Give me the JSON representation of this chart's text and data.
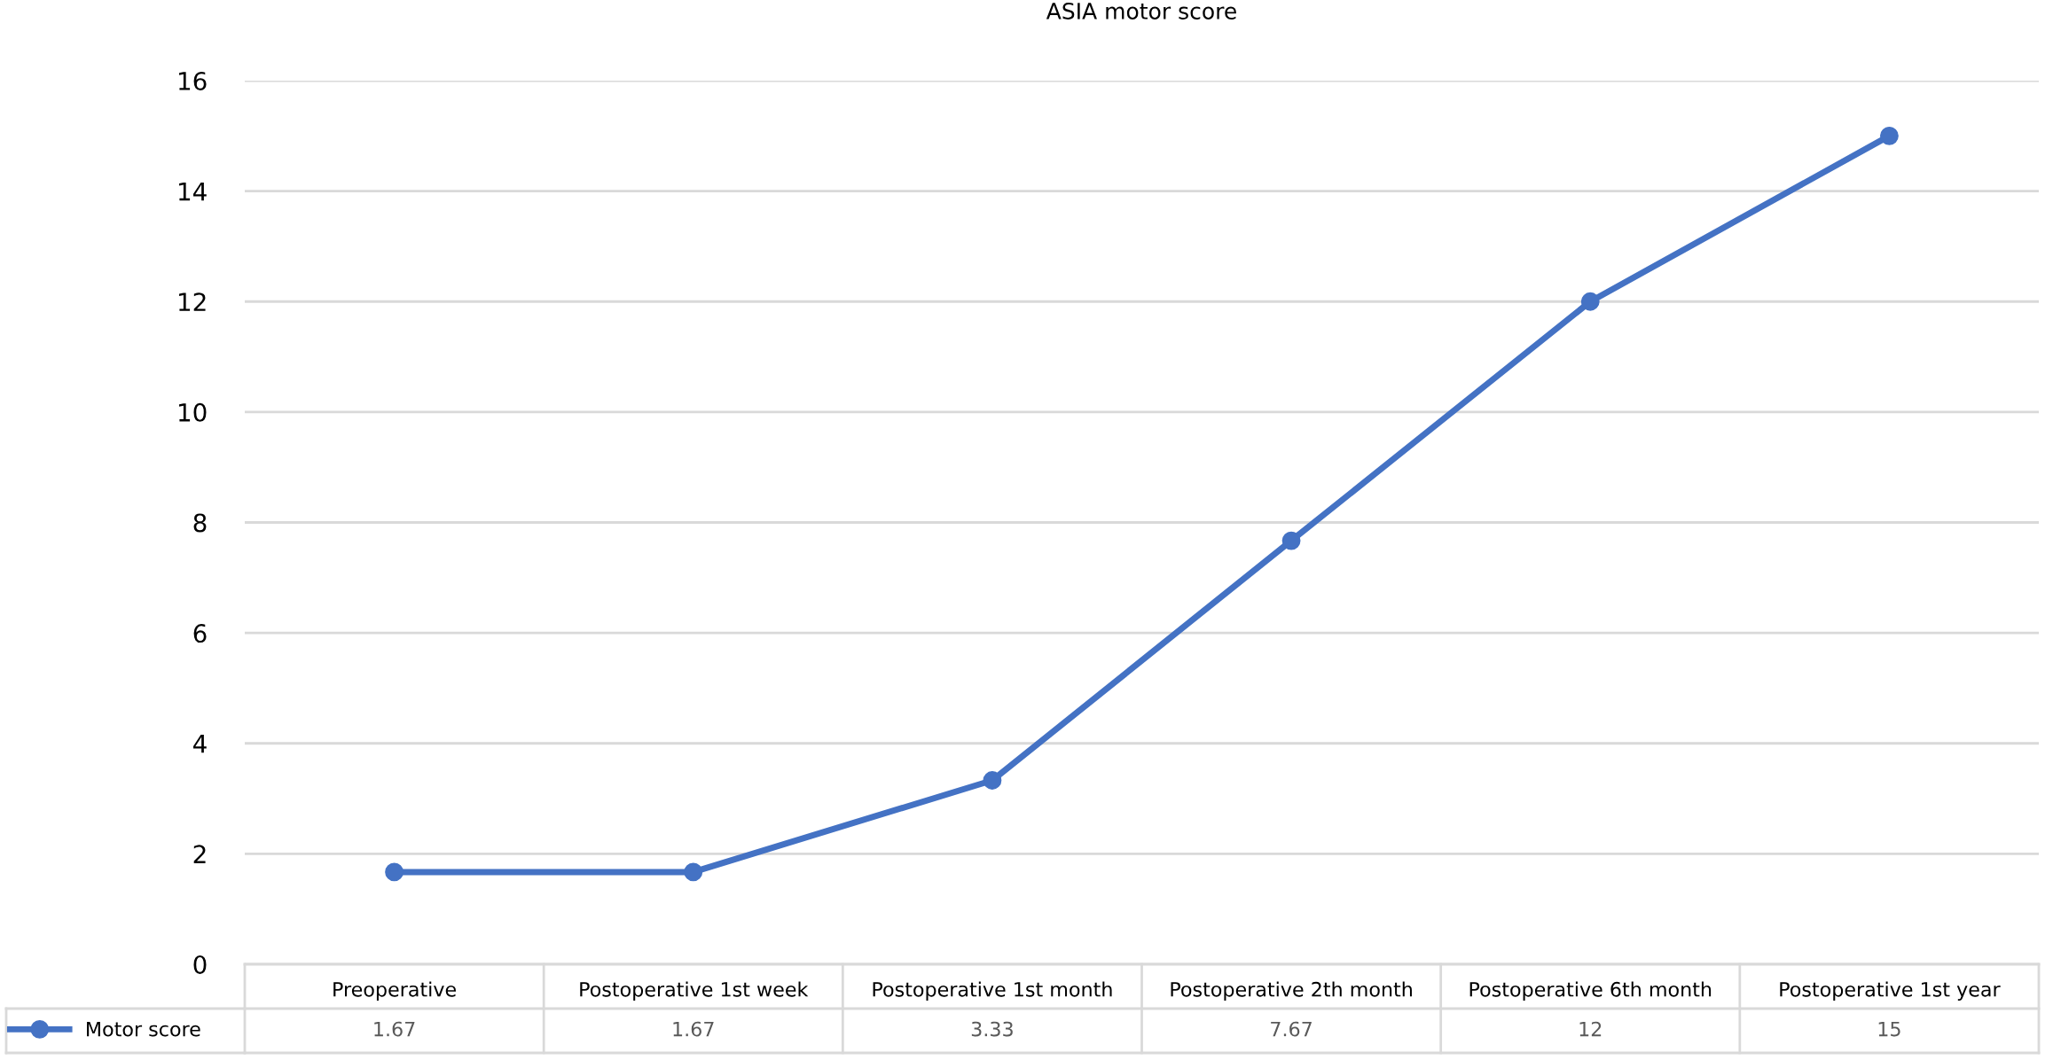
{
  "chart_data": {
    "type": "line",
    "title": "ASIA motor score",
    "categories": [
      "Preoperative",
      "Postoperative 1st week",
      "Postoperative 1st month",
      "Postoperative 2th month",
      "Postoperative 6th month",
      "Postoperative 1st year"
    ],
    "series": [
      {
        "name": "Motor score",
        "color": "#4472c4",
        "values": [
          1.67,
          1.67,
          3.33,
          7.67,
          12,
          15
        ]
      }
    ],
    "ylim": [
      0,
      16
    ],
    "yticks": [
      0,
      2,
      4,
      6,
      8,
      10,
      12,
      14,
      16
    ],
    "grid": "y",
    "marker": "circle",
    "line_style": "solid",
    "data_labels": true,
    "legend": "bottom left"
  }
}
